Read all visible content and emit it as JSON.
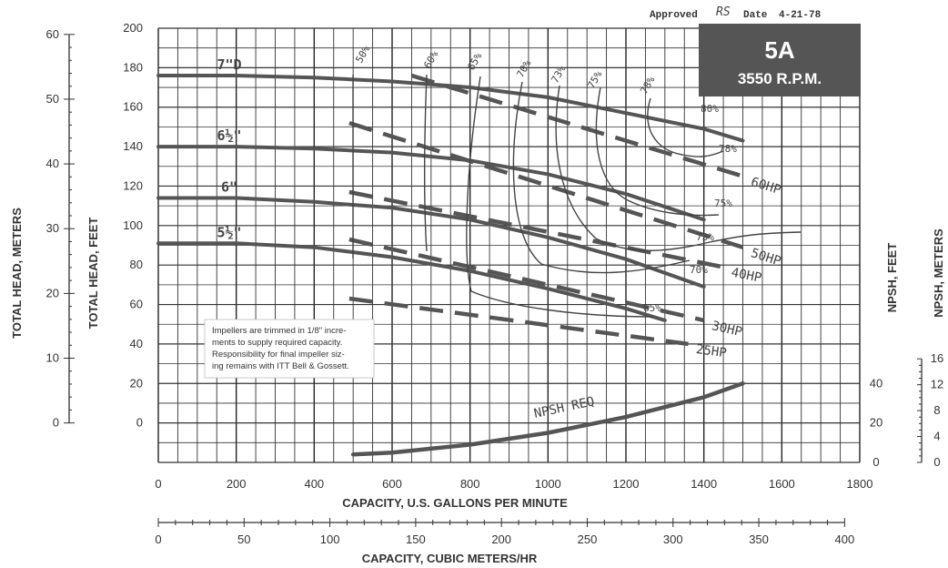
{
  "chart_data": {
    "type": "line",
    "approval": {
      "label": "Approved",
      "initials": "RS",
      "date_label": "Date",
      "date": "4-21-78"
    },
    "badge": {
      "title": "5A",
      "subtitle": "3550 R.P.M.",
      "bg_color": "#555555"
    },
    "note": [
      "Impellers are trimmed in 1/8\" incre-",
      "ments to supply required capacity.",
      "Responsibility for final impeller siz-",
      "ing remains with ITT Bell & Gossett."
    ],
    "x_axis": {
      "label": "CAPACITY, U.S. GALLONS PER MINUTE",
      "range": [
        0,
        1800
      ],
      "ticks": [
        "0",
        "200",
        "400",
        "600",
        "800",
        "1000",
        "1200",
        "1400",
        "1600",
        "1800"
      ]
    },
    "x2_axis": {
      "label": "CAPACITY, CUBIC METERS/HR",
      "range": [
        0,
        400
      ],
      "ticks": [
        "0",
        "50",
        "100",
        "150",
        "200",
        "250",
        "300",
        "350",
        "400"
      ]
    },
    "y_axis": {
      "label": "TOTAL HEAD, FEET",
      "range": [
        -20,
        200
      ],
      "ticks": [
        "0",
        "20",
        "40",
        "60",
        "80",
        "100",
        "120",
        "140",
        "160",
        "180",
        "200"
      ]
    },
    "y2_axis": {
      "label": "TOTAL HEAD, METERS",
      "ticks": [
        "0",
        "10",
        "20",
        "30",
        "40",
        "50",
        "60"
      ]
    },
    "npsh_ft_axis": {
      "label": "NPSH, FEET",
      "ticks": [
        "0",
        "20",
        "40"
      ]
    },
    "npsh_m_axis": {
      "label": "NPSH, METERS",
      "ticks": [
        "0",
        "4",
        "8",
        "12",
        "16"
      ]
    },
    "grid": true,
    "impeller_curves": [
      {
        "name": "7\"D",
        "x": [
          0,
          200,
          400,
          600,
          800,
          1000,
          1200,
          1400,
          1500
        ],
        "y": [
          176,
          176,
          175,
          173,
          170,
          165,
          157,
          149,
          143
        ]
      },
      {
        "name": "6½\"",
        "x": [
          0,
          200,
          400,
          600,
          800,
          1000,
          1200,
          1400
        ],
        "y": [
          140,
          140,
          139,
          137,
          133,
          126,
          116,
          103
        ]
      },
      {
        "name": "6\"",
        "x": [
          0,
          200,
          400,
          600,
          800,
          1000,
          1200,
          1400
        ],
        "y": [
          114,
          114,
          112,
          109,
          103,
          94,
          83,
          69
        ]
      },
      {
        "name": "5½\"",
        "x": [
          0,
          200,
          400,
          600,
          800,
          1000,
          1200,
          1300
        ],
        "y": [
          91,
          91,
          89,
          84,
          77,
          68,
          58,
          52
        ]
      }
    ],
    "hp_lines": [
      {
        "name": "60HP",
        "x": [
          650,
          1500
        ],
        "y": [
          176,
          125
        ]
      },
      {
        "name": "50HP",
        "x": [
          490,
          1500
        ],
        "y": [
          152,
          89
        ]
      },
      {
        "name": "40HP",
        "x": [
          490,
          1450
        ],
        "y": [
          117,
          79
        ]
      },
      {
        "name": "30HP",
        "x": [
          490,
          1400
        ],
        "y": [
          93,
          52
        ]
      },
      {
        "name": "25HP",
        "x": [
          490,
          1360
        ],
        "y": [
          63,
          40
        ]
      }
    ],
    "efficiency_labels": [
      "50%",
      "60%",
      "65%",
      "70%",
      "73%",
      "75%",
      "78%",
      "80%",
      "78%",
      "75%",
      "73%",
      "70%",
      "65%"
    ],
    "npsh_req": {
      "name": "NPSH REQ",
      "x": [
        500,
        600,
        800,
        1000,
        1200,
        1400,
        1500
      ],
      "y": [
        4,
        5,
        9,
        15,
        23,
        33,
        40
      ]
    }
  }
}
